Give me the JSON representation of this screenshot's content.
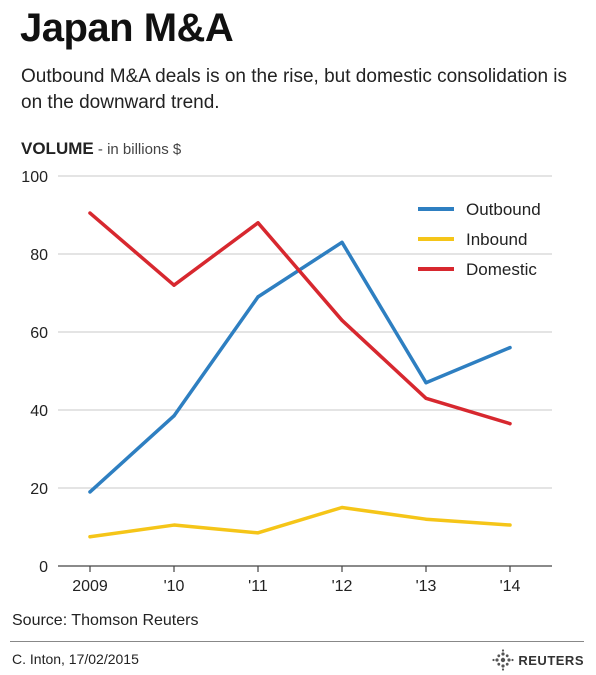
{
  "header": {
    "title": "Japan M&A",
    "subtitle": "Outbound M&A deals is on the rise, but domestic consolidation is on the downward trend.",
    "volume_label": "VOLUME",
    "volume_unit": " - in billions $"
  },
  "chart_data": {
    "type": "line",
    "categories": [
      "2009",
      "'10",
      "'11",
      "'12",
      "'13",
      "'14"
    ],
    "series": [
      {
        "name": "Outbound",
        "color": "#2e7fc1",
        "values": [
          19,
          38.5,
          69,
          83,
          47,
          56
        ]
      },
      {
        "name": "Inbound",
        "color": "#f5c518",
        "values": [
          7.5,
          10.5,
          8.5,
          15,
          12,
          10.5
        ]
      },
      {
        "name": "Domestic",
        "color": "#d7282f",
        "values": [
          90.5,
          72,
          88,
          63,
          43,
          36.5
        ]
      }
    ],
    "ylim": [
      0,
      100
    ],
    "yticks": [
      "0",
      "20",
      "40",
      "60",
      "80",
      "100"
    ],
    "grid": true,
    "legend": "top-right"
  },
  "footer": {
    "source": "Source: Thomson Reuters",
    "credit": "C. Inton, 17/02/2015",
    "logo": "REUTERS"
  }
}
